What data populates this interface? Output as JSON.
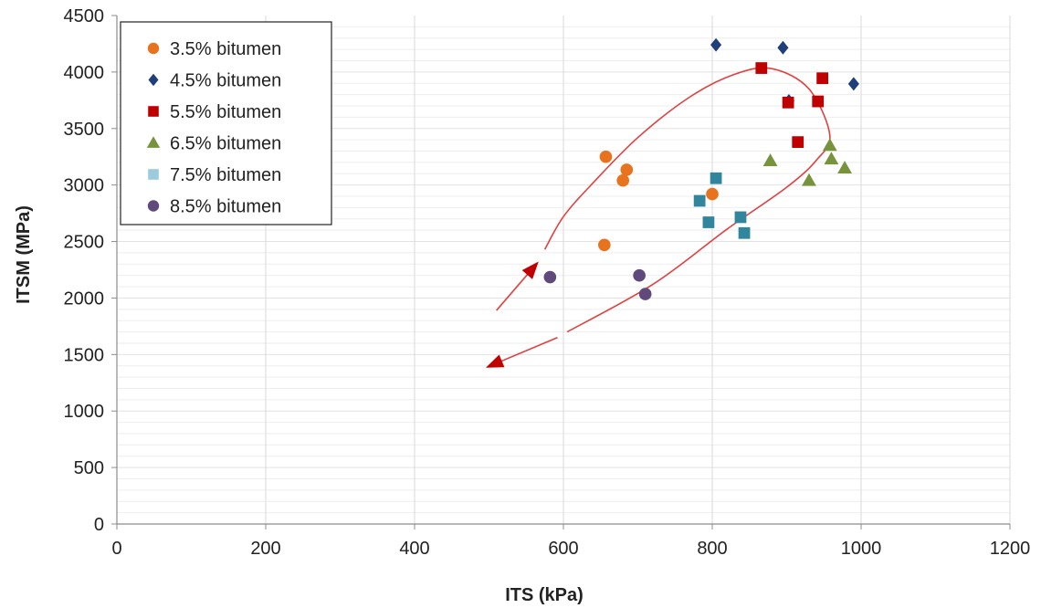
{
  "chart_data": {
    "type": "scatter",
    "title": "",
    "xlabel": "ITS (kPa)",
    "ylabel": "ITSM (MPa)",
    "xlim": [
      0,
      1200
    ],
    "ylim": [
      0,
      4500
    ],
    "x_ticks": [
      0,
      200,
      400,
      600,
      800,
      1000,
      1200
    ],
    "y_ticks": [
      0,
      500,
      1000,
      1500,
      2000,
      2500,
      3000,
      3500,
      4000,
      4500
    ],
    "grid": "vertical major gridlines, horizontal minor gridlines",
    "legend_position": "top-left",
    "series": [
      {
        "name": "3.5% bitumen",
        "marker": "circle",
        "color": "#E8731F",
        "points": [
          [
            657,
            3250
          ],
          [
            685,
            3135
          ],
          [
            680,
            3040
          ],
          [
            655,
            2470
          ],
          [
            800,
            2920
          ]
        ]
      },
      {
        "name": "4.5% bitumen",
        "marker": "diamond",
        "color": "#1F3F7A",
        "points": [
          [
            805,
            4240
          ],
          [
            895,
            4215
          ],
          [
            990,
            3895
          ],
          [
            903,
            3745
          ]
        ]
      },
      {
        "name": "5.5% bitumen",
        "marker": "square",
        "color": "#C00000",
        "points": [
          [
            866,
            4035
          ],
          [
            948,
            3945
          ],
          [
            902,
            3730
          ],
          [
            942,
            3740
          ],
          [
            915,
            3380
          ]
        ]
      },
      {
        "name": "6.5% bitumen",
        "marker": "triangle",
        "color": "#77933C",
        "points": [
          [
            878,
            3215
          ],
          [
            958,
            3350
          ],
          [
            960,
            3230
          ],
          [
            978,
            3150
          ],
          [
            930,
            3040
          ]
        ]
      },
      {
        "name": "7.5% bitumen",
        "marker": "square",
        "color": "#31859C",
        "legend_color": "#9BCBDC",
        "points": [
          [
            805,
            3060
          ],
          [
            783,
            2860
          ],
          [
            795,
            2670
          ],
          [
            838,
            2715
          ],
          [
            843,
            2575
          ]
        ]
      },
      {
        "name": "8.5% bitumen",
        "marker": "circle",
        "color": "#604A7B",
        "points": [
          [
            582,
            2185
          ],
          [
            702,
            2200
          ],
          [
            710,
            2035
          ]
        ]
      }
    ],
    "annotation": {
      "type": "arrow-loop",
      "color": "#E04040",
      "arrowhead_color": "#C00000",
      "upper_branch_points": [
        [
          510,
          1890
        ],
        [
          565,
          2310
        ]
      ],
      "loop_path_points": [
        [
          575,
          2430
        ],
        [
          600,
          2720
        ],
        [
          640,
          3020
        ],
        [
          700,
          3420
        ],
        [
          770,
          3780
        ],
        [
          830,
          3980
        ],
        [
          880,
          4030
        ],
        [
          930,
          3850
        ],
        [
          958,
          3440
        ],
        [
          940,
          3220
        ],
        [
          900,
          2980
        ],
        [
          820,
          2610
        ],
        [
          720,
          2120
        ],
        [
          605,
          1700
        ]
      ],
      "lower_branch_points": [
        [
          592,
          1650
        ],
        [
          498,
          1390
        ]
      ]
    }
  }
}
